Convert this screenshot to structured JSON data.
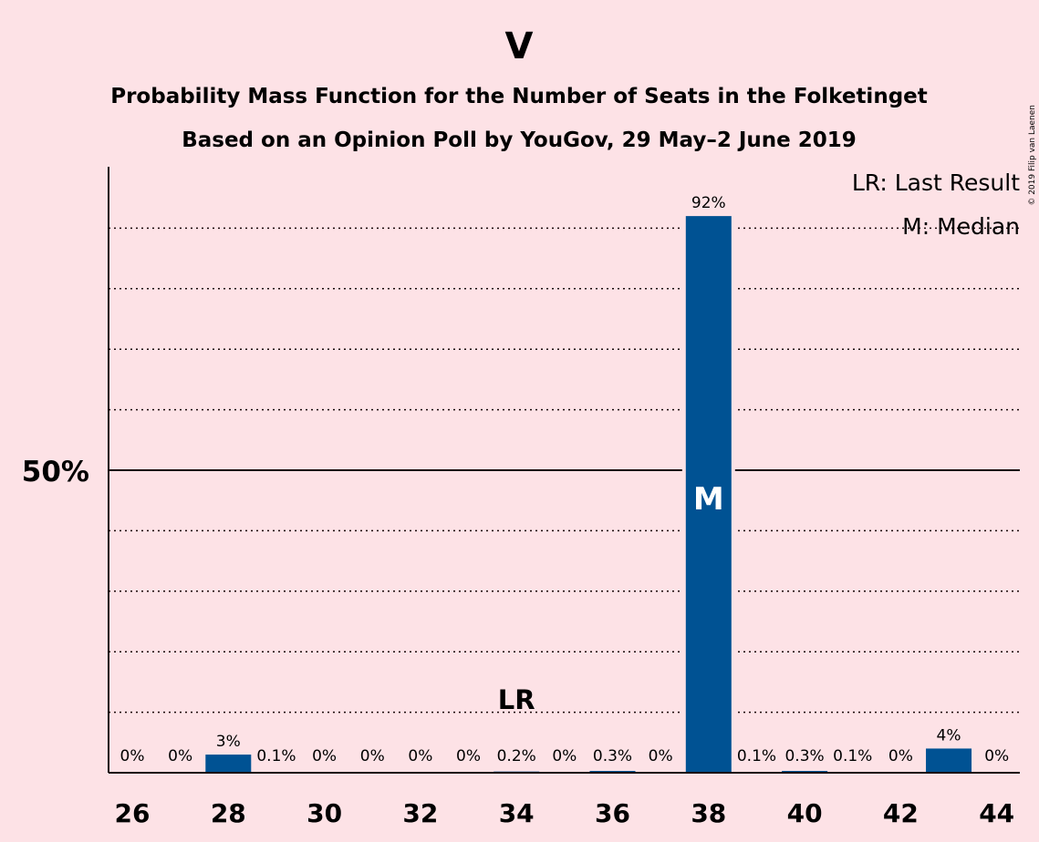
{
  "chart_data": {
    "type": "bar",
    "title": "V",
    "subtitle_lines": [
      "Probability Mass Function for the Number of Seats in the Folketinget",
      "Based on an Opinion Poll by YouGov, 29 May–2 June 2019"
    ],
    "x": [
      26,
      27,
      28,
      29,
      30,
      31,
      32,
      33,
      34,
      35,
      36,
      37,
      38,
      39,
      40,
      41,
      42,
      43,
      44
    ],
    "values": [
      0,
      0,
      3,
      0.1,
      0,
      0,
      0,
      0,
      0.2,
      0,
      0.3,
      0,
      92,
      0.1,
      0.3,
      0.1,
      0,
      4,
      0
    ],
    "data_labels": [
      "0%",
      "0%",
      "3%",
      "0.1%",
      "0%",
      "0%",
      "0%",
      "0%",
      "0.2%",
      "0%",
      "0.3%",
      "0%",
      "92%",
      "0.1%",
      "0.3%",
      "0.1%",
      "0%",
      "4%",
      "0%"
    ],
    "x_tick_labels": [
      "26",
      "28",
      "30",
      "32",
      "34",
      "36",
      "38",
      "40",
      "42",
      "44"
    ],
    "y_tick_labels": [
      "50%"
    ],
    "ylim": [
      0,
      100
    ],
    "gridlines": "dotted every 10%, solid at 50%",
    "last_result": {
      "seats": 34,
      "label": "LR"
    },
    "median": {
      "seats": 38,
      "label": "M"
    },
    "legend": {
      "placement": "top-right",
      "entries": [
        "LR: Last Result",
        "M: Median"
      ]
    },
    "colors": {
      "bar": "#005293",
      "background": "#fde2e6",
      "text": "#1a0a0a"
    }
  },
  "copyright": "© 2019 Filip van Laenen"
}
